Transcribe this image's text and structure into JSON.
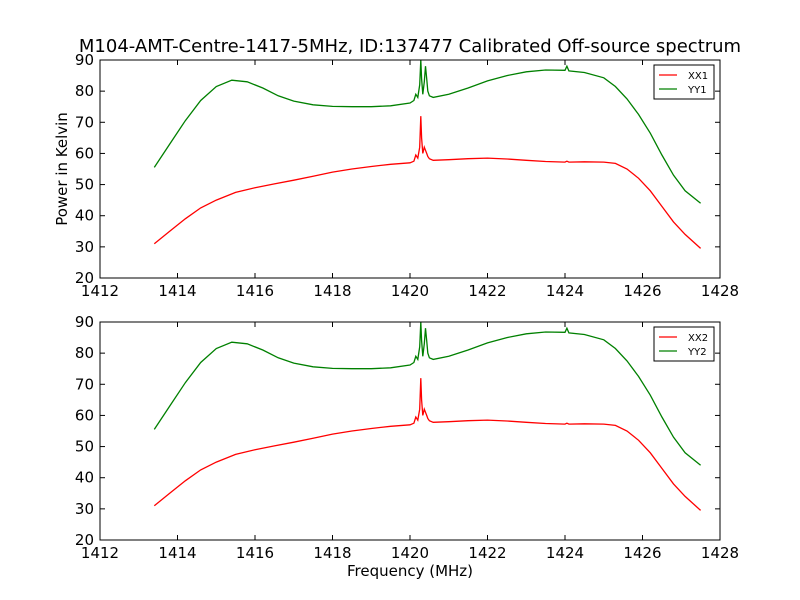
{
  "figure": {
    "title": "M104-AMT-Centre-1417-5MHz, ID:137477 Calibrated Off-source spectrum",
    "xlabel": "Frequency (MHz)",
    "ylabel": "Power in Kelvin"
  },
  "chart_data": [
    {
      "type": "line",
      "xlim": [
        1412,
        1428
      ],
      "ylim": [
        20,
        90
      ],
      "xticks": [
        1412,
        1414,
        1416,
        1418,
        1420,
        1422,
        1424,
        1426,
        1428
      ],
      "yticks": [
        20,
        30,
        40,
        50,
        60,
        70,
        80,
        90
      ],
      "xlabel": "",
      "ylabel": "Power in Kelvin",
      "grid": false,
      "legend_position": "top-right",
      "series": [
        {
          "name": "XX1",
          "color": "#ff0000",
          "x": [
            1413.4,
            1413.8,
            1414.2,
            1414.6,
            1415.0,
            1415.5,
            1416.0,
            1416.5,
            1417.0,
            1417.5,
            1418.0,
            1418.5,
            1419.0,
            1419.5,
            1420.0,
            1420.1,
            1420.15,
            1420.2,
            1420.25,
            1420.28,
            1420.3,
            1420.33,
            1420.37,
            1420.4,
            1420.43,
            1420.46,
            1420.5,
            1420.6,
            1421.0,
            1421.5,
            1422.0,
            1422.5,
            1423.0,
            1423.5,
            1424.0,
            1424.05,
            1424.1,
            1424.5,
            1425.0,
            1425.3,
            1425.6,
            1425.9,
            1426.2,
            1426.5,
            1426.8,
            1427.1,
            1427.5
          ],
          "y": [
            31,
            35,
            39,
            42.5,
            45,
            47.5,
            49,
            50.2,
            51.4,
            52.7,
            54,
            55,
            55.8,
            56.5,
            57,
            57.5,
            59.5,
            58.5,
            62,
            72,
            65,
            60,
            62,
            61,
            60,
            59,
            58.3,
            57.8,
            58,
            58.3,
            58.5,
            58.2,
            57.8,
            57.4,
            57.2,
            57.5,
            57.2,
            57.3,
            57.2,
            56.8,
            55,
            52,
            48,
            43,
            38,
            34,
            29.5
          ]
        },
        {
          "name": "YY1",
          "color": "#008000",
          "x": [
            1413.4,
            1413.8,
            1414.2,
            1414.6,
            1415.0,
            1415.4,
            1415.8,
            1416.2,
            1416.6,
            1417.0,
            1417.5,
            1418.0,
            1418.5,
            1419.0,
            1419.5,
            1420.0,
            1420.1,
            1420.15,
            1420.2,
            1420.25,
            1420.28,
            1420.3,
            1420.33,
            1420.37,
            1420.4,
            1420.43,
            1420.46,
            1420.5,
            1420.6,
            1421.0,
            1421.5,
            1422.0,
            1422.5,
            1423.0,
            1423.5,
            1424.0,
            1424.05,
            1424.1,
            1424.5,
            1425.0,
            1425.3,
            1425.6,
            1425.9,
            1426.2,
            1426.5,
            1426.8,
            1427.1,
            1427.5
          ],
          "y": [
            55.5,
            63,
            70.5,
            77,
            81.5,
            83.5,
            83,
            81,
            78.5,
            76.8,
            75.6,
            75.1,
            75,
            75,
            75.3,
            76.2,
            77,
            79,
            78,
            82,
            90,
            84,
            79,
            83,
            88,
            84,
            80,
            78.5,
            78,
            79,
            81,
            83.3,
            85,
            86.2,
            86.8,
            86.7,
            88,
            86.5,
            86,
            84.3,
            81.5,
            77.5,
            72.5,
            66.5,
            59.5,
            53,
            48,
            44
          ]
        }
      ]
    },
    {
      "type": "line",
      "xlim": [
        1412,
        1428
      ],
      "ylim": [
        20,
        90
      ],
      "xticks": [
        1412,
        1414,
        1416,
        1418,
        1420,
        1422,
        1424,
        1426,
        1428
      ],
      "yticks": [
        20,
        30,
        40,
        50,
        60,
        70,
        80,
        90
      ],
      "xlabel": "Frequency (MHz)",
      "ylabel": "",
      "grid": false,
      "legend_position": "top-right",
      "series": [
        {
          "name": "XX2",
          "color": "#ff0000",
          "x": [
            1413.4,
            1413.8,
            1414.2,
            1414.6,
            1415.0,
            1415.5,
            1416.0,
            1416.5,
            1417.0,
            1417.5,
            1418.0,
            1418.5,
            1419.0,
            1419.5,
            1420.0,
            1420.1,
            1420.15,
            1420.2,
            1420.25,
            1420.28,
            1420.3,
            1420.33,
            1420.37,
            1420.4,
            1420.43,
            1420.46,
            1420.5,
            1420.6,
            1421.0,
            1421.5,
            1422.0,
            1422.5,
            1423.0,
            1423.5,
            1424.0,
            1424.05,
            1424.1,
            1424.5,
            1425.0,
            1425.3,
            1425.6,
            1425.9,
            1426.2,
            1426.5,
            1426.8,
            1427.1,
            1427.5
          ],
          "y": [
            31,
            35,
            39,
            42.5,
            45,
            47.5,
            49,
            50.2,
            51.4,
            52.7,
            54,
            55,
            55.8,
            56.5,
            57,
            57.5,
            59.5,
            58.5,
            62,
            72,
            65,
            60,
            62,
            61,
            60,
            59,
            58.3,
            57.8,
            58,
            58.3,
            58.5,
            58.2,
            57.8,
            57.4,
            57.2,
            57.5,
            57.2,
            57.3,
            57.2,
            56.8,
            55,
            52,
            48,
            43,
            38,
            34,
            29.5
          ]
        },
        {
          "name": "YY2",
          "color": "#008000",
          "x": [
            1413.4,
            1413.8,
            1414.2,
            1414.6,
            1415.0,
            1415.4,
            1415.8,
            1416.2,
            1416.6,
            1417.0,
            1417.5,
            1418.0,
            1418.5,
            1419.0,
            1419.5,
            1420.0,
            1420.1,
            1420.15,
            1420.2,
            1420.25,
            1420.28,
            1420.3,
            1420.33,
            1420.37,
            1420.4,
            1420.43,
            1420.46,
            1420.5,
            1420.6,
            1421.0,
            1421.5,
            1422.0,
            1422.5,
            1423.0,
            1423.5,
            1424.0,
            1424.05,
            1424.1,
            1424.5,
            1425.0,
            1425.3,
            1425.6,
            1425.9,
            1426.2,
            1426.5,
            1426.8,
            1427.1,
            1427.5
          ],
          "y": [
            55.5,
            63,
            70.5,
            77,
            81.5,
            83.5,
            83,
            81,
            78.5,
            76.8,
            75.6,
            75.1,
            75,
            75,
            75.3,
            76.2,
            77,
            79,
            78,
            82,
            90,
            84,
            79,
            83,
            88,
            84,
            80,
            78.5,
            78,
            79,
            81,
            83.3,
            85,
            86.2,
            86.8,
            86.7,
            88,
            86.5,
            86,
            84.3,
            81.5,
            77.5,
            72.5,
            66.5,
            59.5,
            53,
            48,
            44
          ]
        }
      ]
    }
  ]
}
